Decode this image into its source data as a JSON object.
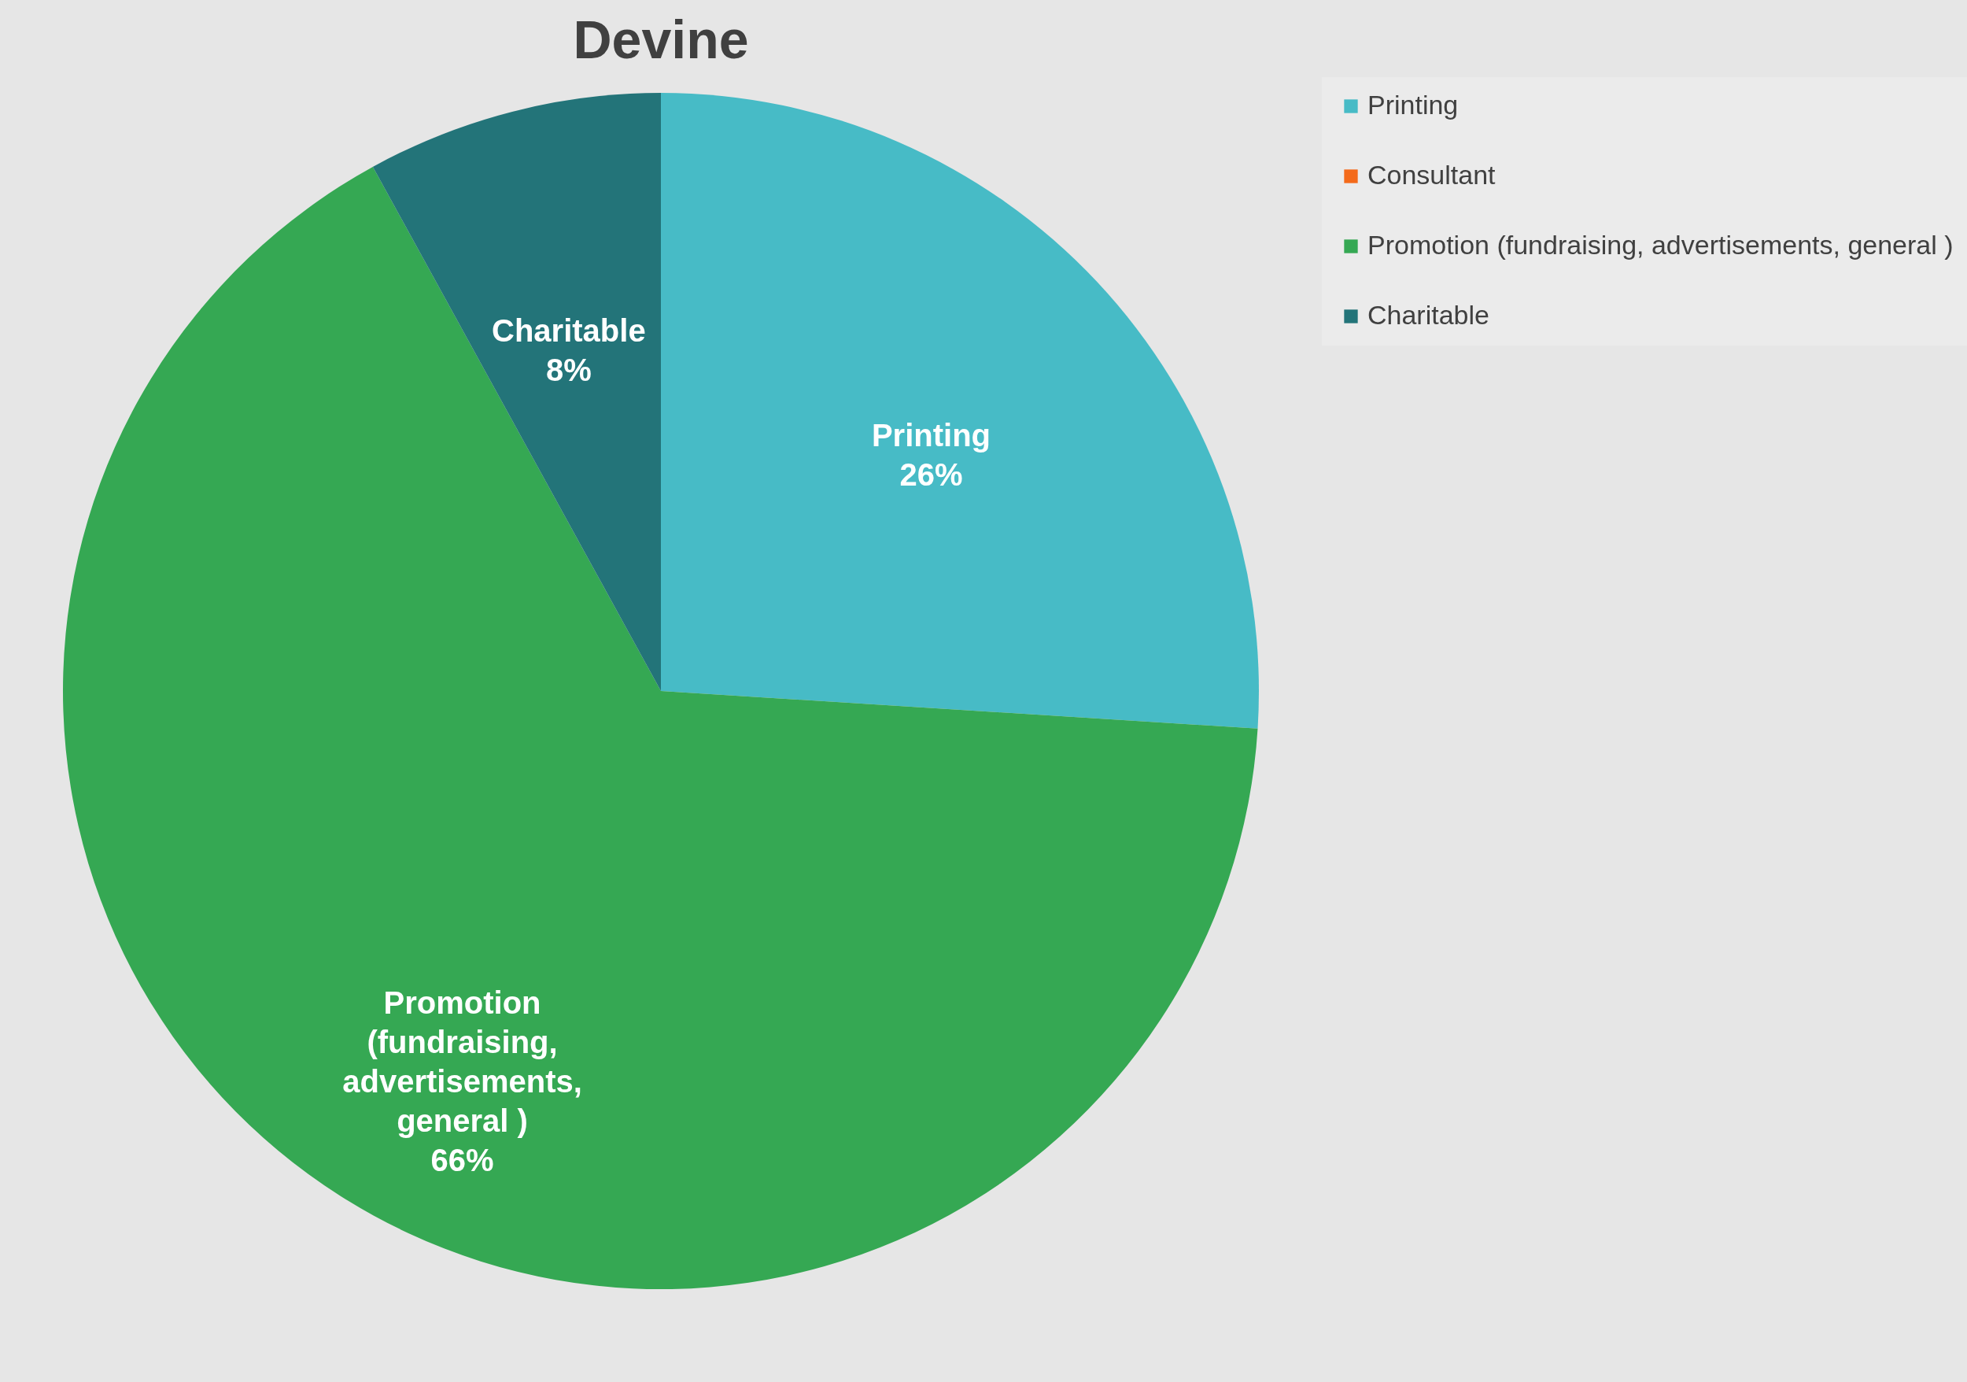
{
  "chart_data": {
    "type": "pie",
    "title": "Devine",
    "categories": [
      "Printing",
      "Consultant",
      "Promotion (fundraising, advertisements, general )",
      "Charitable"
    ],
    "values": [
      26,
      0,
      66,
      8
    ],
    "colors": [
      "#47bbc6",
      "#f46a1a",
      "#35a853",
      "#237479"
    ],
    "value_labels": [
      "26%",
      null,
      "66%",
      "8%"
    ],
    "legend": "right"
  }
}
